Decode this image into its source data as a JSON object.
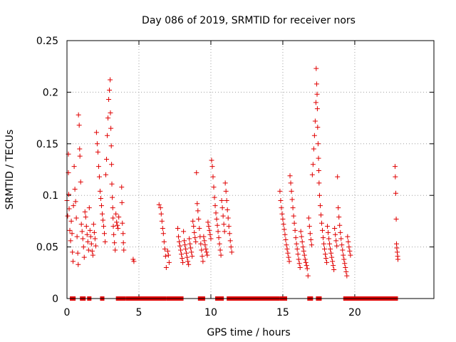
{
  "chart_data": {
    "type": "scatter",
    "title": "Day 086 of 2019, SRMTID for receiver nors",
    "xlabel": "GPS time / hours",
    "ylabel": "SRMTID / TECUs",
    "xlim": [
      0,
      25.5
    ],
    "ylim": [
      0,
      0.25
    ],
    "x_ticks": [
      0,
      5,
      10,
      15,
      20
    ],
    "x_tick_labels": [
      "0",
      "5",
      "10",
      "15",
      "20"
    ],
    "y_ticks": [
      0,
      0.05,
      0.1,
      0.15,
      0.2,
      0.25
    ],
    "y_tick_labels": [
      "0",
      "0.05",
      "0.1",
      "0.15",
      "0.2",
      "0.25"
    ],
    "grid": true,
    "marker": "+",
    "color": "#e00000",
    "series": [
      {
        "name": "SRMTID",
        "points": [
          [
            0.0,
            0.095
          ],
          [
            0.05,
            0.08
          ],
          [
            0.1,
            0.14
          ],
          [
            0.1,
            0.122
          ],
          [
            0.12,
            0.101
          ],
          [
            0.15,
            0.087
          ],
          [
            0.2,
            0.066
          ],
          [
            0.25,
            0.056
          ],
          [
            0.3,
            0.075
          ],
          [
            0.35,
            0.063
          ],
          [
            0.38,
            0.045
          ],
          [
            0.42,
            0.036
          ],
          [
            0.45,
            0.09
          ],
          [
            0.5,
            0.128
          ],
          [
            0.55,
            0.106
          ],
          [
            0.6,
            0.094
          ],
          [
            0.65,
            0.078
          ],
          [
            0.7,
            0.06
          ],
          [
            0.75,
            0.044
          ],
          [
            0.78,
            0.033
          ],
          [
            0.8,
            0.178
          ],
          [
            0.85,
            0.168
          ],
          [
            0.88,
            0.145
          ],
          [
            0.9,
            0.138
          ],
          [
            0.95,
            0.113
          ],
          [
            1.0,
            0.072
          ],
          [
            1.05,
            0.065
          ],
          [
            1.1,
            0.058
          ],
          [
            1.15,
            0.05
          ],
          [
            1.2,
            0.04
          ],
          [
            1.25,
            0.084
          ],
          [
            1.3,
            0.079
          ],
          [
            1.35,
            0.07
          ],
          [
            1.4,
            0.062
          ],
          [
            1.45,
            0.055
          ],
          [
            1.5,
            0.047
          ],
          [
            1.55,
            0.088
          ],
          [
            1.6,
            0.066
          ],
          [
            1.65,
            0.06
          ],
          [
            1.7,
            0.053
          ],
          [
            1.75,
            0.046
          ],
          [
            1.8,
            0.042
          ],
          [
            1.85,
            0.072
          ],
          [
            1.9,
            0.064
          ],
          [
            1.95,
            0.058
          ],
          [
            2.0,
            0.051
          ],
          [
            2.05,
            0.161
          ],
          [
            2.1,
            0.15
          ],
          [
            2.15,
            0.142
          ],
          [
            2.2,
            0.128
          ],
          [
            2.25,
            0.118
          ],
          [
            2.3,
            0.104
          ],
          [
            2.35,
            0.097
          ],
          [
            2.4,
            0.09
          ],
          [
            2.45,
            0.082
          ],
          [
            2.5,
            0.076
          ],
          [
            2.55,
            0.07
          ],
          [
            2.6,
            0.063
          ],
          [
            2.65,
            0.055
          ],
          [
            2.7,
            0.12
          ],
          [
            2.75,
            0.135
          ],
          [
            2.8,
            0.158
          ],
          [
            2.85,
            0.175
          ],
          [
            2.9,
            0.193
          ],
          [
            2.95,
            0.202
          ],
          [
            3.0,
            0.212
          ],
          [
            3.02,
            0.18
          ],
          [
            3.05,
            0.165
          ],
          [
            3.08,
            0.148
          ],
          [
            3.1,
            0.13
          ],
          [
            3.12,
            0.111
          ],
          [
            3.15,
            0.098
          ],
          [
            3.18,
            0.088
          ],
          [
            3.2,
            0.078
          ],
          [
            3.22,
            0.07
          ],
          [
            3.25,
            0.062
          ],
          [
            3.3,
            0.054
          ],
          [
            3.35,
            0.047
          ],
          [
            3.4,
            0.082
          ],
          [
            3.45,
            0.074
          ],
          [
            3.5,
            0.071
          ],
          [
            3.55,
            0.068
          ],
          [
            3.6,
            0.079
          ],
          [
            3.8,
            0.108
          ],
          [
            3.82,
            0.093
          ],
          [
            3.85,
            0.073
          ],
          [
            3.9,
            0.063
          ],
          [
            3.92,
            0.054
          ],
          [
            3.95,
            0.047
          ],
          [
            4.6,
            0.038
          ],
          [
            4.65,
            0.036
          ],
          [
            6.4,
            0.091
          ],
          [
            6.5,
            0.088
          ],
          [
            6.55,
            0.082
          ],
          [
            6.6,
            0.075
          ],
          [
            6.65,
            0.068
          ],
          [
            6.7,
            0.063
          ],
          [
            6.75,
            0.055
          ],
          [
            6.8,
            0.048
          ],
          [
            6.85,
            0.041
          ],
          [
            6.9,
            0.03
          ],
          [
            7.0,
            0.046
          ],
          [
            7.05,
            0.042
          ],
          [
            7.1,
            0.035
          ],
          [
            7.7,
            0.068
          ],
          [
            7.75,
            0.06
          ],
          [
            7.8,
            0.055
          ],
          [
            7.85,
            0.051
          ],
          [
            7.9,
            0.047
          ],
          [
            7.95,
            0.043
          ],
          [
            8.0,
            0.039
          ],
          [
            8.05,
            0.035
          ],
          [
            8.1,
            0.065
          ],
          [
            8.15,
            0.056
          ],
          [
            8.2,
            0.052
          ],
          [
            8.25,
            0.048
          ],
          [
            8.3,
            0.044
          ],
          [
            8.35,
            0.04
          ],
          [
            8.4,
            0.036
          ],
          [
            8.45,
            0.033
          ],
          [
            8.5,
            0.058
          ],
          [
            8.55,
            0.053
          ],
          [
            8.6,
            0.049
          ],
          [
            8.65,
            0.045
          ],
          [
            8.7,
            0.041
          ],
          [
            8.75,
            0.075
          ],
          [
            8.8,
            0.07
          ],
          [
            8.85,
            0.064
          ],
          [
            8.9,
            0.059
          ],
          [
            8.95,
            0.055
          ],
          [
            9.0,
            0.122
          ],
          [
            9.05,
            0.092
          ],
          [
            9.1,
            0.085
          ],
          [
            9.15,
            0.077
          ],
          [
            9.2,
            0.068
          ],
          [
            9.25,
            0.06
          ],
          [
            9.3,
            0.053
          ],
          [
            9.35,
            0.047
          ],
          [
            9.4,
            0.041
          ],
          [
            9.45,
            0.036
          ],
          [
            9.5,
            0.06
          ],
          [
            9.55,
            0.056
          ],
          [
            9.6,
            0.052
          ],
          [
            9.65,
            0.048
          ],
          [
            9.7,
            0.045
          ],
          [
            9.75,
            0.042
          ],
          [
            9.8,
            0.074
          ],
          [
            9.85,
            0.07
          ],
          [
            9.9,
            0.066
          ],
          [
            9.95,
            0.062
          ],
          [
            10.0,
            0.058
          ],
          [
            10.05,
            0.134
          ],
          [
            10.1,
            0.128
          ],
          [
            10.15,
            0.118
          ],
          [
            10.2,
            0.108
          ],
          [
            10.25,
            0.098
          ],
          [
            10.3,
            0.09
          ],
          [
            10.35,
            0.083
          ],
          [
            10.4,
            0.077
          ],
          [
            10.45,
            0.071
          ],
          [
            10.5,
            0.065
          ],
          [
            10.55,
            0.059
          ],
          [
            10.6,
            0.053
          ],
          [
            10.65,
            0.047
          ],
          [
            10.7,
            0.042
          ],
          [
            10.75,
            0.095
          ],
          [
            10.8,
            0.088
          ],
          [
            10.85,
            0.08
          ],
          [
            10.9,
            0.072
          ],
          [
            10.95,
            0.065
          ],
          [
            11.0,
            0.112
          ],
          [
            11.05,
            0.104
          ],
          [
            11.1,
            0.095
          ],
          [
            11.15,
            0.086
          ],
          [
            11.2,
            0.078
          ],
          [
            11.25,
            0.07
          ],
          [
            11.3,
            0.063
          ],
          [
            11.35,
            0.056
          ],
          [
            11.4,
            0.05
          ],
          [
            11.45,
            0.045
          ],
          [
            14.8,
            0.104
          ],
          [
            14.85,
            0.095
          ],
          [
            14.9,
            0.088
          ],
          [
            14.95,
            0.082
          ],
          [
            15.0,
            0.077
          ],
          [
            15.05,
            0.072
          ],
          [
            15.1,
            0.067
          ],
          [
            15.15,
            0.062
          ],
          [
            15.2,
            0.057
          ],
          [
            15.25,
            0.052
          ],
          [
            15.3,
            0.048
          ],
          [
            15.35,
            0.044
          ],
          [
            15.4,
            0.04
          ],
          [
            15.45,
            0.036
          ],
          [
            15.5,
            0.119
          ],
          [
            15.55,
            0.112
          ],
          [
            15.6,
            0.104
          ],
          [
            15.65,
            0.096
          ],
          [
            15.7,
            0.088
          ],
          [
            15.75,
            0.08
          ],
          [
            15.8,
            0.073
          ],
          [
            15.85,
            0.066
          ],
          [
            15.9,
            0.059
          ],
          [
            15.95,
            0.053
          ],
          [
            16.0,
            0.048
          ],
          [
            16.05,
            0.043
          ],
          [
            16.1,
            0.038
          ],
          [
            16.15,
            0.034
          ],
          [
            16.2,
            0.03
          ],
          [
            16.25,
            0.065
          ],
          [
            16.3,
            0.06
          ],
          [
            16.35,
            0.055
          ],
          [
            16.4,
            0.05
          ],
          [
            16.45,
            0.046
          ],
          [
            16.5,
            0.042
          ],
          [
            16.55,
            0.038
          ],
          [
            16.6,
            0.035
          ],
          [
            16.65,
            0.032
          ],
          [
            16.7,
            0.029
          ],
          [
            16.75,
            0.022
          ],
          [
            16.8,
            0.078
          ],
          [
            16.85,
            0.07
          ],
          [
            16.9,
            0.063
          ],
          [
            16.95,
            0.057
          ],
          [
            17.0,
            0.052
          ],
          [
            17.05,
            0.12
          ],
          [
            17.1,
            0.13
          ],
          [
            17.15,
            0.145
          ],
          [
            17.2,
            0.158
          ],
          [
            17.25,
            0.172
          ],
          [
            17.3,
            0.19
          ],
          [
            17.32,
            0.223
          ],
          [
            17.35,
            0.208
          ],
          [
            17.38,
            0.198
          ],
          [
            17.4,
            0.184
          ],
          [
            17.42,
            0.166
          ],
          [
            17.45,
            0.15
          ],
          [
            17.48,
            0.136
          ],
          [
            17.5,
            0.124
          ],
          [
            17.52,
            0.112
          ],
          [
            17.55,
            0.1
          ],
          [
            17.6,
            0.09
          ],
          [
            17.65,
            0.081
          ],
          [
            17.7,
            0.073
          ],
          [
            17.75,
            0.066
          ],
          [
            17.8,
            0.059
          ],
          [
            17.85,
            0.053
          ],
          [
            17.9,
            0.048
          ],
          [
            17.95,
            0.043
          ],
          [
            18.0,
            0.039
          ],
          [
            18.05,
            0.035
          ],
          [
            18.1,
            0.07
          ],
          [
            18.15,
            0.064
          ],
          [
            18.2,
            0.058
          ],
          [
            18.25,
            0.053
          ],
          [
            18.3,
            0.048
          ],
          [
            18.35,
            0.044
          ],
          [
            18.4,
            0.04
          ],
          [
            18.45,
            0.036
          ],
          [
            18.5,
            0.032
          ],
          [
            18.55,
            0.028
          ],
          [
            18.6,
            0.068
          ],
          [
            18.65,
            0.062
          ],
          [
            18.7,
            0.056
          ],
          [
            18.75,
            0.051
          ],
          [
            18.8,
            0.118
          ],
          [
            18.85,
            0.088
          ],
          [
            18.9,
            0.079
          ],
          [
            18.95,
            0.071
          ],
          [
            19.0,
            0.064
          ],
          [
            19.05,
            0.058
          ],
          [
            19.1,
            0.052
          ],
          [
            19.15,
            0.047
          ],
          [
            19.2,
            0.042
          ],
          [
            19.25,
            0.038
          ],
          [
            19.3,
            0.034
          ],
          [
            19.35,
            0.03
          ],
          [
            19.4,
            0.026
          ],
          [
            19.45,
            0.022
          ],
          [
            19.5,
            0.06
          ],
          [
            19.55,
            0.055
          ],
          [
            19.6,
            0.05
          ],
          [
            19.65,
            0.046
          ],
          [
            19.7,
            0.042
          ],
          [
            22.8,
            0.128
          ],
          [
            22.82,
            0.118
          ],
          [
            22.85,
            0.102
          ],
          [
            22.88,
            0.077
          ],
          [
            22.9,
            0.053
          ],
          [
            22.92,
            0.049
          ],
          [
            22.95,
            0.045
          ],
          [
            22.98,
            0.041
          ],
          [
            23.0,
            0.038
          ]
        ],
        "zero_runs": [
          [
            0.3,
            0.5
          ],
          [
            1.0,
            1.2
          ],
          [
            1.5,
            1.6
          ],
          [
            2.4,
            2.5
          ],
          [
            3.5,
            4.0
          ],
          [
            4.2,
            6.8
          ],
          [
            7.0,
            7.5
          ],
          [
            7.6,
            8.0
          ],
          [
            9.2,
            9.5
          ],
          [
            10.4,
            10.8
          ],
          [
            11.2,
            14.7
          ],
          [
            14.9,
            15.2
          ],
          [
            16.8,
            17.0
          ],
          [
            17.4,
            17.6
          ],
          [
            19.3,
            22.9
          ]
        ]
      }
    ]
  }
}
